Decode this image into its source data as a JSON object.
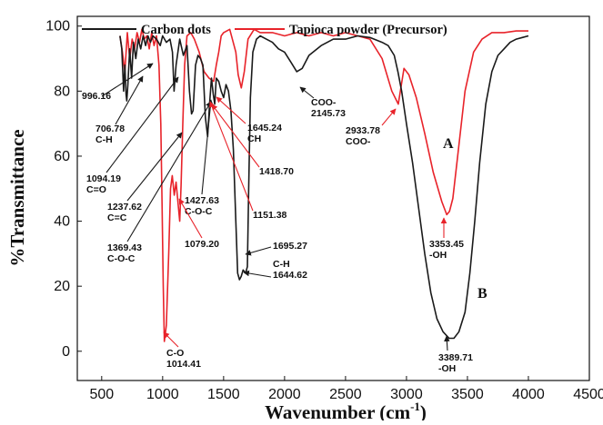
{
  "chart_data": {
    "type": "line",
    "xlabel": "Wavenumber (cm",
    "xlabel_sup": "-1",
    "xlabel_close": ")",
    "ylabel": "%Transmittance",
    "xlim": [
      300,
      4500
    ],
    "ylim": [
      -9,
      103
    ],
    "x_ticks": [
      500,
      1000,
      1500,
      2000,
      2500,
      3000,
      3500,
      4000,
      4500
    ],
    "x_tick_labels": [
      "500",
      "1000",
      "1500",
      "2000",
      "2500",
      "3000",
      "3500",
      "4000",
      "4500"
    ],
    "y_ticks": [
      0,
      20,
      40,
      60,
      80,
      100
    ],
    "y_tick_labels": [
      "0",
      "20",
      "40",
      "60",
      "80",
      "100"
    ],
    "grid": false,
    "legend_position": "top",
    "series": [
      {
        "name": "Carbon dots",
        "color": "#1a1a1a",
        "curve_label": "B",
        "x": [
          650,
          665,
          680,
          690,
          700,
          706,
          715,
          730,
          745,
          760,
          780,
          800,
          820,
          840,
          860,
          880,
          900,
          920,
          950,
          980,
          1000,
          1030,
          1060,
          1080,
          1094,
          1110,
          1140,
          1170,
          1200,
          1220,
          1237,
          1250,
          1270,
          1290,
          1310,
          1330,
          1350,
          1369,
          1385,
          1400,
          1415,
          1427,
          1440,
          1460,
          1480,
          1500,
          1520,
          1540,
          1560,
          1580,
          1600,
          1615,
          1630,
          1644,
          1660,
          1680,
          1695,
          1705,
          1720,
          1740,
          1770,
          1800,
          1850,
          1900,
          1950,
          2000,
          2050,
          2100,
          2145,
          2200,
          2300,
          2400,
          2500,
          2600,
          2700,
          2800,
          2850,
          2900,
          2930,
          2960,
          3000,
          3050,
          3100,
          3150,
          3200,
          3250,
          3300,
          3350,
          3389,
          3430,
          3480,
          3520,
          3560,
          3600,
          3650,
          3700,
          3750,
          3800,
          3850,
          3900,
          3950,
          4000
        ],
        "y": [
          97,
          93,
          80,
          88,
          79,
          77,
          82,
          93,
          84,
          95,
          90,
          96,
          93,
          97,
          94,
          97,
          95,
          97,
          96,
          94,
          97,
          95,
          96,
          92,
          80,
          88,
          96,
          91,
          94,
          80,
          73,
          74,
          88,
          91,
          90,
          88,
          72,
          66,
          76,
          84,
          79,
          76,
          84,
          83,
          80,
          78,
          82,
          80,
          74,
          62,
          40,
          24,
          22,
          23,
          25,
          24,
          26,
          48,
          78,
          92,
          96,
          97,
          96,
          95,
          93,
          92,
          89,
          86,
          87,
          91,
          94,
          96,
          96,
          97,
          96.5,
          95,
          94,
          91,
          86,
          80,
          70,
          58,
          44,
          30,
          18,
          10,
          6,
          4,
          4,
          6,
          12,
          24,
          40,
          58,
          76,
          86,
          91,
          93,
          95,
          96,
          96.5,
          97
        ]
      },
      {
        "name": "Tapioca powder (Precursor)",
        "color": "#e8232a",
        "curve_label": "A",
        "x": [
          650,
          670,
          690,
          710,
          730,
          750,
          770,
          790,
          810,
          830,
          850,
          870,
          890,
          910,
          930,
          950,
          970,
          985,
          995,
          1005,
          1014,
          1030,
          1050,
          1065,
          1079,
          1095,
          1110,
          1125,
          1140,
          1151,
          1165,
          1180,
          1200,
          1230,
          1260,
          1300,
          1340,
          1380,
          1418,
          1440,
          1460,
          1480,
          1500,
          1550,
          1600,
          1620,
          1645,
          1670,
          1700,
          1750,
          1800,
          1900,
          2000,
          2100,
          2200,
          2300,
          2400,
          2500,
          2600,
          2700,
          2800,
          2880,
          2920,
          2933,
          2950,
          2980,
          3020,
          3080,
          3150,
          3220,
          3290,
          3330,
          3353,
          3380,
          3420,
          3480,
          3550,
          3620,
          3700,
          3800,
          3900,
          4000
        ],
        "y": [
          97,
          92,
          86,
          98,
          90,
          96,
          93,
          98,
          95,
          99,
          96,
          97,
          93,
          98,
          94,
          97,
          88,
          70,
          45,
          20,
          3,
          8,
          30,
          50,
          54,
          48,
          52,
          46,
          40,
          51,
          70,
          88,
          97,
          98,
          96,
          92,
          86,
          84,
          83,
          88,
          92,
          97,
          98,
          99,
          92,
          85,
          81,
          86,
          96,
          99,
          98,
          98,
          97,
          98,
          97,
          98,
          97,
          98,
          97,
          96,
          90,
          80,
          77,
          76,
          80,
          87,
          85,
          78,
          67,
          55,
          46,
          42,
          43,
          47,
          60,
          80,
          92,
          96,
          98,
          98,
          98.5,
          98.5
        ]
      }
    ],
    "annotations": [
      {
        "lines": [
          "996.16"
        ],
        "color": "#1a1a1a"
      },
      {
        "lines": [
          "706.78",
          "C-H"
        ],
        "color": "#1a1a1a"
      },
      {
        "lines": [
          "1094.19",
          "C=O"
        ],
        "color": "#1a1a1a"
      },
      {
        "lines": [
          "1237.62",
          "C=C"
        ],
        "color": "#1a1a1a"
      },
      {
        "lines": [
          "1369.43",
          "C-O-C"
        ],
        "color": "#1a1a1a"
      },
      {
        "lines": [
          "1427.63",
          "C-O-C"
        ],
        "color": "#1a1a1a"
      },
      {
        "lines": [
          "1079.20"
        ],
        "color": "#e8232a"
      },
      {
        "lines": [
          "C-O",
          "1014.41"
        ],
        "color": "#e8232a"
      },
      {
        "lines": [
          "1645.24",
          "CH"
        ],
        "color": "#e8232a"
      },
      {
        "lines": [
          "1418.70"
        ],
        "color": "#e8232a"
      },
      {
        "lines": [
          "1151.38"
        ],
        "color": "#e8232a"
      },
      {
        "lines": [
          "1695.27"
        ],
        "color": "#1a1a1a"
      },
      {
        "lines": [
          "C-H",
          "1644.62"
        ],
        "color": "#1a1a1a"
      },
      {
        "lines": [
          "COO-",
          "2145.73"
        ],
        "color": "#1a1a1a"
      },
      {
        "lines": [
          "2933.78",
          "COO-"
        ],
        "color": "#e8232a"
      },
      {
        "lines": [
          "3353.45",
          "-OH"
        ],
        "color": "#e8232a"
      },
      {
        "lines": [
          "3389.71",
          "-OH"
        ],
        "color": "#1a1a1a"
      }
    ]
  }
}
